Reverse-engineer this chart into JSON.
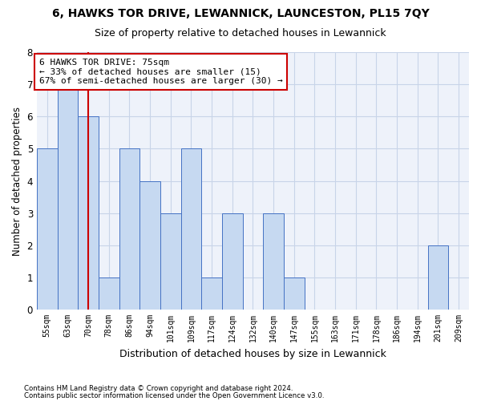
{
  "title": "6, HAWKS TOR DRIVE, LEWANNICK, LAUNCESTON, PL15 7QY",
  "subtitle": "Size of property relative to detached houses in Lewannick",
  "xlabel": "Distribution of detached houses by size in Lewannick",
  "ylabel": "Number of detached properties",
  "categories": [
    "55sqm",
    "63sqm",
    "70sqm",
    "78sqm",
    "86sqm",
    "94sqm",
    "101sqm",
    "109sqm",
    "117sqm",
    "124sqm",
    "132sqm",
    "140sqm",
    "147sqm",
    "155sqm",
    "163sqm",
    "171sqm",
    "178sqm",
    "186sqm",
    "194sqm",
    "201sqm",
    "209sqm"
  ],
  "values": [
    5,
    7,
    6,
    1,
    5,
    4,
    3,
    5,
    1,
    3,
    0,
    3,
    1,
    0,
    0,
    0,
    0,
    0,
    0,
    2,
    0
  ],
  "bar_color": "#c6d9f1",
  "bar_edge_color": "#4472c4",
  "red_line_index": 2,
  "red_line_color": "#cc0000",
  "annotation_line1": "6 HAWKS TOR DRIVE: 75sqm",
  "annotation_line2": "← 33% of detached houses are smaller (15)",
  "annotation_line3": "67% of semi-detached houses are larger (30) →",
  "annotation_box_color": "#cc0000",
  "annotation_fontsize": 8,
  "ylim": [
    0,
    8
  ],
  "yticks": [
    0,
    1,
    2,
    3,
    4,
    5,
    6,
    7,
    8
  ],
  "grid_color": "#c8d4e8",
  "background_color": "#eef2fa",
  "footnote1": "Contains HM Land Registry data © Crown copyright and database right 2024.",
  "footnote2": "Contains public sector information licensed under the Open Government Licence v3.0.",
  "title_fontsize": 10,
  "subtitle_fontsize": 9,
  "xlabel_fontsize": 9,
  "ylabel_fontsize": 8.5
}
